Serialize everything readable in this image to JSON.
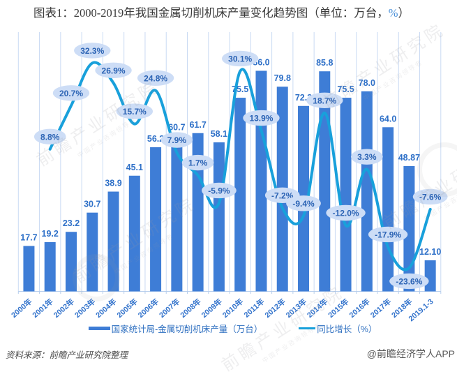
{
  "title": {
    "prefix": "图表1：2000-2019年我国金属切削机床产量变化趋势图（单位：万台，",
    "accent": "%",
    "suffix": "）"
  },
  "chart_data": {
    "type": "bar+line",
    "categories": [
      "2000年",
      "2001年",
      "2002年",
      "2003年",
      "2004年",
      "2005年",
      "2006年",
      "2007年",
      "2008年",
      "2009年",
      "2010年",
      "2011年",
      "2012年",
      "2013年",
      "2014年",
      "2015年",
      "2016年",
      "2017年",
      "2018年",
      "2019.1-3"
    ],
    "series": [
      {
        "name": "国家统计局-金属切削机床产量（万台）",
        "type": "bar",
        "values": [
          17.7,
          19.2,
          23.2,
          30.7,
          38.9,
          45.1,
          56.2,
          60.7,
          61.7,
          58.1,
          75.5,
          86.0,
          79.8,
          72.3,
          85.8,
          75.5,
          78.0,
          64.0,
          48.87,
          12.1
        ],
        "labels": [
          "17.7",
          "19.2",
          "23.2",
          "30.7",
          "38.9",
          "45.1",
          "56.2",
          "60.7",
          "61.7",
          "58.1",
          "75.5",
          "86.0",
          "79.8",
          "72.3",
          "85.8",
          "75.5",
          "78.0",
          "64.0",
          "48.87",
          "12.10"
        ]
      },
      {
        "name": "同比增长（%）",
        "type": "line",
        "values": [
          null,
          8.8,
          20.7,
          32.3,
          26.9,
          15.7,
          24.8,
          7.9,
          1.7,
          -5.9,
          30.1,
          13.9,
          -7.2,
          -9.4,
          18.7,
          -12.0,
          3.3,
          -17.9,
          -23.6,
          -7.6
        ],
        "labels": [
          null,
          "8.8%",
          "20.7%",
          "32.3%",
          "26.9%",
          "15.7%",
          "24.8%",
          "7.9%",
          "1.7%",
          "-5.9%",
          "30.1%",
          "13.9%",
          "-7.2%",
          "-9.4%",
          "18.7%",
          "-12.0%",
          "3.3%",
          "-17.9%",
          "-23.6%",
          "-7.6%"
        ]
      }
    ],
    "ylim_left": [
      0,
      100
    ],
    "ylim_right": [
      -30,
      40
    ],
    "grid": "vertical",
    "legend_position": "bottom"
  },
  "legend": [
    {
      "label": "国家统计局-金属切削机床产量（万台）",
      "type": "bar"
    },
    {
      "label": "同比增长（%）",
      "type": "line"
    }
  ],
  "footer": {
    "source": "资料来源：前瞻产业研究院整理",
    "brand": "@前瞻经济学人APP"
  },
  "watermark": {
    "line1": "前瞻产业研究院",
    "line2": "中国产业咨询领导者"
  },
  "colors": {
    "bar": "#3e7dd6",
    "bar_label": "#2e70c8",
    "line": "#18a0db",
    "bubble_fill": "#cdddf6",
    "bubble_text": "#2b63b4",
    "grid": "#c9daf3",
    "axis": "#b5cdec",
    "tick_label": "#3474cc",
    "legend_text": "#2e6fc0",
    "title": "#3a3a3a",
    "title_percent": "#4a90d9",
    "source": "#4a4a4a",
    "brand": "#595959",
    "watermark": "#9a9aa0"
  }
}
